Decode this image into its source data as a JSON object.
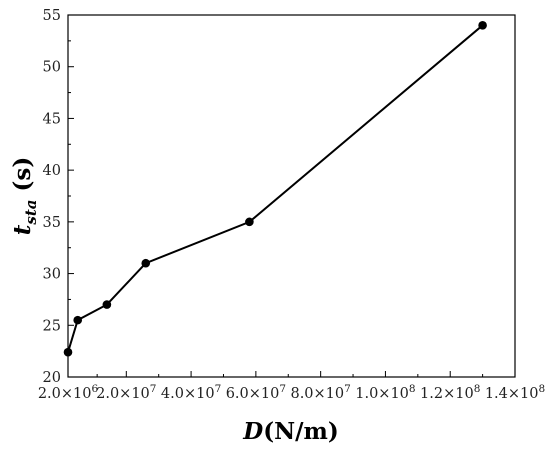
{
  "chart_data": {
    "type": "line",
    "xlabel_parts": {
      "var": "D",
      "unit": "(N/m)"
    },
    "ylabel_parts": {
      "var": "t",
      "sub": "sta",
      "unit": " (s)"
    },
    "x": [
      2000000,
      5000000,
      14000000,
      26000000,
      58000000,
      130000000
    ],
    "y": [
      22.4,
      25.5,
      27.0,
      31.0,
      35.0,
      54.0
    ],
    "xlim": [
      2000000,
      140000000
    ],
    "ylim": [
      20,
      55
    ],
    "x_ticks": [
      {
        "value": 2000000,
        "mant": "2.0",
        "exp": "6"
      },
      {
        "value": 20000000,
        "mant": "2.0",
        "exp": "7"
      },
      {
        "value": 40000000,
        "mant": "4.0",
        "exp": "7"
      },
      {
        "value": 60000000,
        "mant": "6.0",
        "exp": "7"
      },
      {
        "value": 80000000,
        "mant": "8.0",
        "exp": "7"
      },
      {
        "value": 100000000,
        "mant": "1.0",
        "exp": "8"
      },
      {
        "value": 120000000,
        "mant": "1.2",
        "exp": "8"
      },
      {
        "value": 140000000,
        "mant": "1.4",
        "exp": "8"
      }
    ],
    "y_ticks": [
      20,
      25,
      30,
      35,
      40,
      45,
      50,
      55
    ],
    "grid": false,
    "marker": "circle",
    "line_color": "#000000",
    "marker_color": "#000000"
  }
}
